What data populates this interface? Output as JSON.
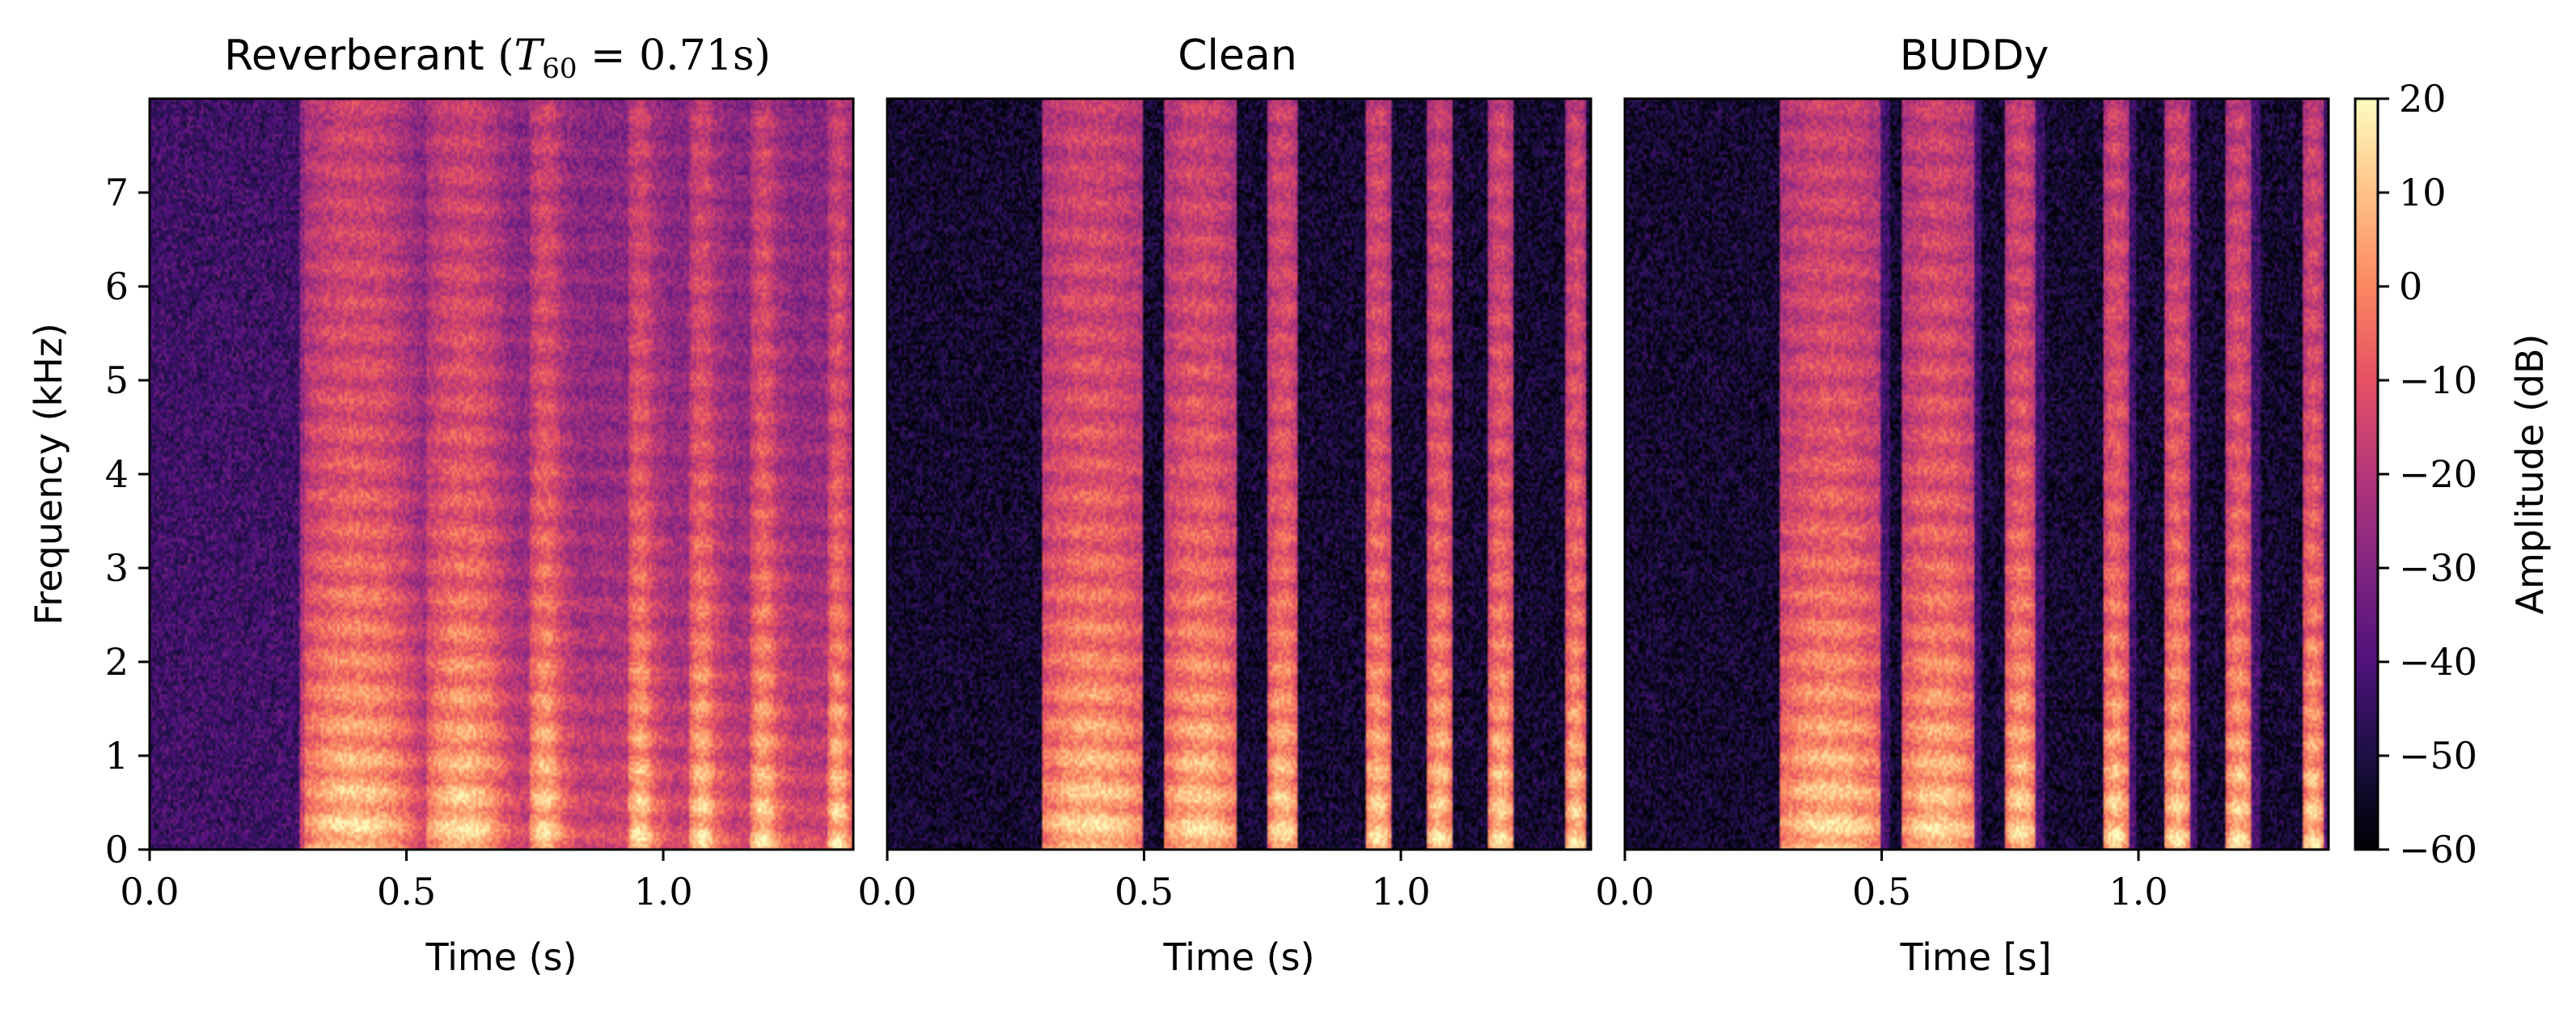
{
  "figure": {
    "colorbar": {
      "label": "Amplitude (dB)",
      "range": [
        -60,
        20
      ],
      "ticks": [
        20,
        10,
        0,
        -10,
        -20,
        -30,
        -40,
        -50,
        -60
      ],
      "colormap": "magma"
    }
  },
  "chart_data": [
    {
      "type": "heatmap",
      "title": "Reverberant (T60 = 0.71s)",
      "title_main": "Reverberant",
      "title_T": "T",
      "title_sub": "60",
      "title_rest": " = 0.71s",
      "xlabel": "Time (s)",
      "ylabel": "Frequency (kHz)",
      "xlim": [
        0.0,
        1.37
      ],
      "ylim": [
        0,
        8
      ],
      "xticks": [
        "0.0",
        "0.5",
        "1.0"
      ],
      "yticks": [
        "0",
        "1",
        "2",
        "3",
        "4",
        "5",
        "6",
        "7"
      ],
      "value_range_db": [
        -60,
        20
      ],
      "silence_end_s": 0.29,
      "reverb_decay": 1.0,
      "clean_event_starts_s": [
        0.3,
        0.54,
        0.74,
        0.93,
        1.05,
        1.17,
        1.32
      ],
      "clean_event_ends_s": [
        0.5,
        0.68,
        0.8,
        0.98,
        1.1,
        1.22,
        1.36
      ]
    },
    {
      "type": "heatmap",
      "title": "Clean",
      "xlabel": "Time (s)",
      "ylabel": "",
      "xlim": [
        0.0,
        1.37
      ],
      "ylim": [
        0,
        8
      ],
      "xticks": [
        "0.0",
        "0.5",
        "1.0"
      ],
      "value_range_db": [
        -60,
        20
      ],
      "silence_end_s": 0.29,
      "reverb_decay": 0.0,
      "clean_event_starts_s": [
        0.3,
        0.54,
        0.74,
        0.93,
        1.05,
        1.17,
        1.32
      ],
      "clean_event_ends_s": [
        0.5,
        0.68,
        0.8,
        0.98,
        1.1,
        1.22,
        1.36
      ]
    },
    {
      "type": "heatmap",
      "title": "BUDDy",
      "xlabel": "Time [s]",
      "ylabel": "",
      "xlim": [
        0.0,
        1.37
      ],
      "ylim": [
        0,
        8
      ],
      "xticks": [
        "0.0",
        "0.5",
        "1.0"
      ],
      "value_range_db": [
        -60,
        20
      ],
      "silence_end_s": 0.29,
      "reverb_decay": 0.15,
      "clean_event_starts_s": [
        0.3,
        0.54,
        0.74,
        0.93,
        1.05,
        1.17,
        1.32
      ],
      "clean_event_ends_s": [
        0.5,
        0.68,
        0.8,
        0.98,
        1.1,
        1.22,
        1.36
      ]
    }
  ]
}
